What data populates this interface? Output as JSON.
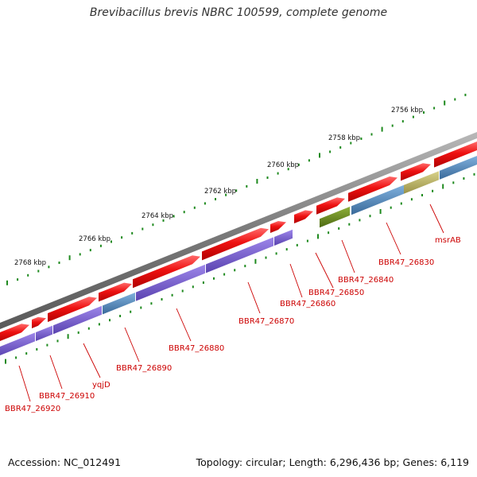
{
  "title": "Brevibacillus brevis NBRC 100599, complete genome",
  "accession": "Accession: NC_012491",
  "summary": "Topology: circular; Length: 6,296,436 bp; Genes: 6,119",
  "colors": {
    "backbone": "#808080",
    "cds": "#ee1111",
    "blue_track": "#4a7fb0",
    "purple_track": "#7a5fd0",
    "olive": "#6a8a20",
    "khaki": "#b8b060",
    "tick": "#1f8a1f",
    "label": "#cc0000"
  },
  "scale": {
    "labels": [
      "2756 kbp",
      "2758 kbp",
      "2760 kbp",
      "2762 kbp",
      "2764 kbp",
      "2766 kbp",
      "2768 kbp"
    ]
  },
  "genes": [
    {
      "label": "msrAB"
    },
    {
      "label": "BBR47_26830"
    },
    {
      "label": "BBR47_26840"
    },
    {
      "label": "BBR47_26850"
    },
    {
      "label": "BBR47_26860"
    },
    {
      "label": "BBR47_26870"
    },
    {
      "label": "BBR47_26880"
    },
    {
      "label": "BBR47_26890"
    },
    {
      "label": "yqjD"
    },
    {
      "label": "BBR47_26910"
    },
    {
      "label": "BBR47_26920"
    }
  ]
}
